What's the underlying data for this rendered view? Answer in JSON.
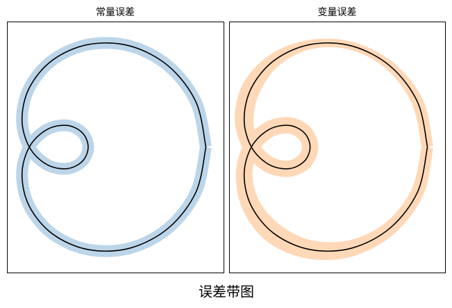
{
  "title": "误差带图",
  "chart_data": [
    {
      "type": "line",
      "title": "常量误差",
      "color": "#000000",
      "band_color": "#bcd5e9",
      "xlim": [
        -0.19,
        1.65
      ],
      "ylim": [
        -1.06,
        1.06
      ],
      "x": [
        1.5,
        1.416,
        1.183,
        0.854,
        0.5,
        0.196,
        0,
        -0.062,
        0,
        0.146,
        0.317,
        0.45,
        0.5,
        0.45,
        0.317,
        0.146,
        0,
        -0.062,
        0,
        0.196,
        0.5,
        0.854,
        1.183,
        1.416,
        1.5
      ],
      "values": [
        0,
        0.379,
        0.683,
        0.854,
        0.866,
        0.733,
        0.5,
        0.233,
        0,
        -0.146,
        -0.183,
        -0.121,
        0,
        0.121,
        0.183,
        0.146,
        0,
        -0.233,
        -0.5,
        -0.733,
        -0.866,
        -0.854,
        -0.683,
        -0.379,
        0
      ],
      "errors": [
        0.05,
        0.05,
        0.05,
        0.05,
        0.05,
        0.05,
        0.05,
        0.05,
        0.05,
        0.05,
        0.05,
        0.05,
        0.05,
        0.05,
        0.05,
        0.05,
        0.05,
        0.05,
        0.05,
        0.05,
        0.05,
        0.05,
        0.05,
        0.05,
        0.05
      ]
    },
    {
      "type": "line",
      "title": "变量误差",
      "color": "#000000",
      "band_color": "#ffd8b7",
      "xlim": [
        -0.19,
        1.65
      ],
      "ylim": [
        -1.06,
        1.06
      ],
      "x": [
        1.5,
        1.416,
        1.183,
        0.854,
        0.5,
        0.196,
        0,
        -0.062,
        0,
        0.146,
        0.317,
        0.45,
        0.5,
        0.45,
        0.317,
        0.146,
        0,
        -0.062,
        0,
        0.196,
        0.5,
        0.854,
        1.183,
        1.416,
        1.5
      ],
      "values": [
        0,
        0.379,
        0.683,
        0.854,
        0.866,
        0.733,
        0.5,
        0.233,
        0,
        -0.146,
        -0.183,
        -0.121,
        0,
        0.121,
        0.183,
        0.146,
        0,
        -0.233,
        -0.5,
        -0.733,
        -0.866,
        -0.854,
        -0.683,
        -0.379,
        0
      ],
      "errors": [
        0.05,
        0.05,
        0.04,
        0.035,
        0.04,
        0.06,
        0.08,
        0.08,
        0.07,
        0.07,
        0.07,
        0.07,
        0.07,
        0.07,
        0.07,
        0.07,
        0.07,
        0.07,
        0.08,
        0.09,
        0.08,
        0.07,
        0.06,
        0.055,
        0.05
      ]
    }
  ]
}
